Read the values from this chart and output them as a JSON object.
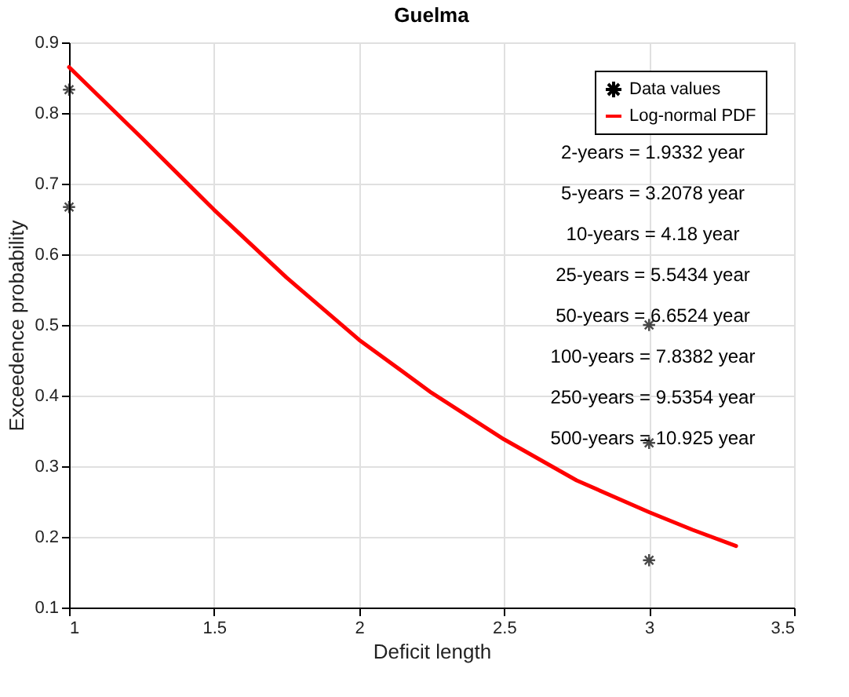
{
  "chart_data": {
    "type": "line",
    "title": "Guelma",
    "xlabel": "Deficit length",
    "ylabel": "Exceedence probability",
    "xlim": [
      1,
      3.5
    ],
    "xticks": [
      1,
      1.5,
      2,
      2.5,
      3,
      3.5
    ],
    "ylim": [
      0.1,
      0.9
    ],
    "yticks": [
      0.1,
      0.2,
      0.3,
      0.4,
      0.5,
      0.6,
      0.7,
      0.8,
      0.9
    ],
    "grid": true,
    "legend": "top right",
    "series": [
      {
        "name": "Data values",
        "type": "scatter",
        "marker": "cross",
        "color": "#000000",
        "x": [
          1,
          1,
          3,
          3,
          3
        ],
        "values": [
          0.833,
          0.667,
          0.5,
          0.333,
          0.167
        ]
      },
      {
        "name": "Log-normal PDF",
        "line_style": "solid",
        "color": "#ff0000",
        "x": [
          1,
          1.25,
          1.5,
          1.75,
          2,
          2.25,
          2.5,
          2.75,
          3,
          3.15,
          3.3
        ],
        "values": [
          0.865,
          0.765,
          0.663,
          0.567,
          0.479,
          0.404,
          0.338,
          0.28,
          0.235,
          0.21,
          0.187
        ]
      }
    ],
    "annotations": [
      "2-years = 1.9332 year",
      "5-years = 3.2078 year",
      "10-years = 4.18  year",
      "25-years = 5.5434 year",
      "50-years = 6.6524  year",
      "100-years = 7.8382  year",
      "250-years = 9.5354  year",
      "500-years = 10.925  year"
    ]
  }
}
